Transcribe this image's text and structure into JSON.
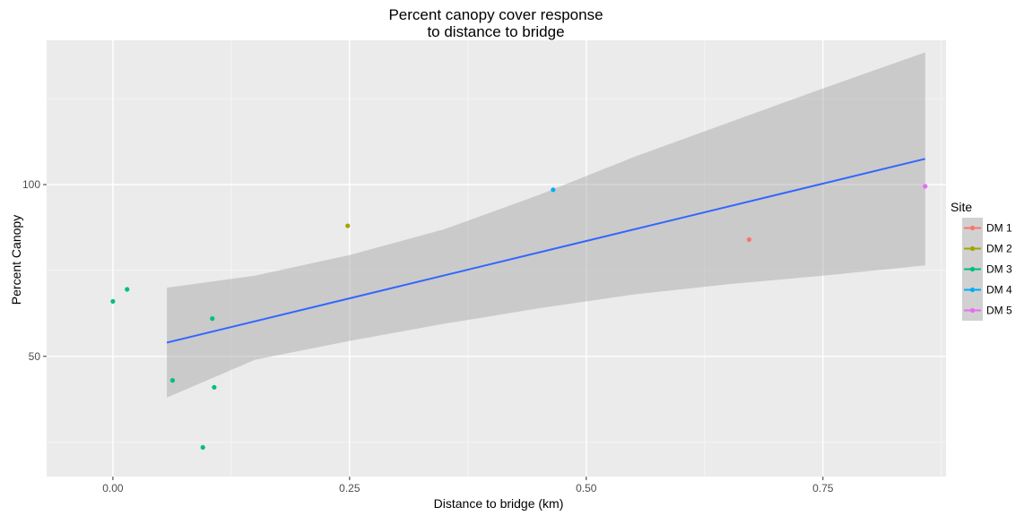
{
  "chart_data": {
    "type": "scatter",
    "title_lines": [
      "Percent canopy cover response",
      "to distance to bridge"
    ],
    "xlabel": "Distance to bridge (km)",
    "ylabel": "Percent Canopy",
    "xlim": [
      -0.07,
      0.88
    ],
    "ylim": [
      15,
      142
    ],
    "x_ticks": [
      0.0,
      0.25,
      0.5,
      0.75
    ],
    "x_tick_labels": [
      "0.00",
      "0.25",
      "0.50",
      "0.75"
    ],
    "y_ticks": [
      50,
      100
    ],
    "y_tick_labels": [
      "50",
      "100"
    ],
    "y_minor_ticks": [
      25,
      75,
      125
    ],
    "grid": true,
    "legend": {
      "title": "Site",
      "position": "right",
      "entries": [
        {
          "label": "DM 1",
          "color": "#F8766D"
        },
        {
          "label": "DM 2",
          "color": "#A3A500"
        },
        {
          "label": "DM 3",
          "color": "#00BF7D"
        },
        {
          "label": "DM 4",
          "color": "#00B0F6"
        },
        {
          "label": "DM 5",
          "color": "#E76BF3"
        }
      ]
    },
    "points": [
      {
        "x": 0.0,
        "y": 66,
        "site": "DM 3"
      },
      {
        "x": 0.015,
        "y": 69.5,
        "site": "DM 3"
      },
      {
        "x": 0.063,
        "y": 43,
        "site": "DM 3"
      },
      {
        "x": 0.095,
        "y": 23.5,
        "site": "DM 3"
      },
      {
        "x": 0.105,
        "y": 61,
        "site": "DM 3"
      },
      {
        "x": 0.107,
        "y": 41,
        "site": "DM 3"
      },
      {
        "x": 0.248,
        "y": 88,
        "site": "DM 2"
      },
      {
        "x": 0.465,
        "y": 98.5,
        "site": "DM 4"
      },
      {
        "x": 0.672,
        "y": 84,
        "site": "DM 1"
      },
      {
        "x": 0.858,
        "y": 99.5,
        "site": "DM 5"
      }
    ],
    "fit": {
      "method": "lm",
      "color": "#3366FF",
      "x": [
        0.057,
        0.858
      ],
      "y": [
        54,
        107.5
      ],
      "ribbon_color": "#999999",
      "ribbon": [
        {
          "x": 0.057,
          "lower": 38,
          "upper": 70
        },
        {
          "x": 0.15,
          "lower": 49,
          "upper": 73.5
        },
        {
          "x": 0.25,
          "lower": 54.5,
          "upper": 79.5
        },
        {
          "x": 0.35,
          "lower": 59.5,
          "upper": 87
        },
        {
          "x": 0.45,
          "lower": 64,
          "upper": 97
        },
        {
          "x": 0.55,
          "lower": 68,
          "upper": 108
        },
        {
          "x": 0.65,
          "lower": 71,
          "upper": 118
        },
        {
          "x": 0.75,
          "lower": 73.5,
          "upper": 128
        },
        {
          "x": 0.858,
          "lower": 76.5,
          "upper": 138.5
        }
      ]
    }
  }
}
